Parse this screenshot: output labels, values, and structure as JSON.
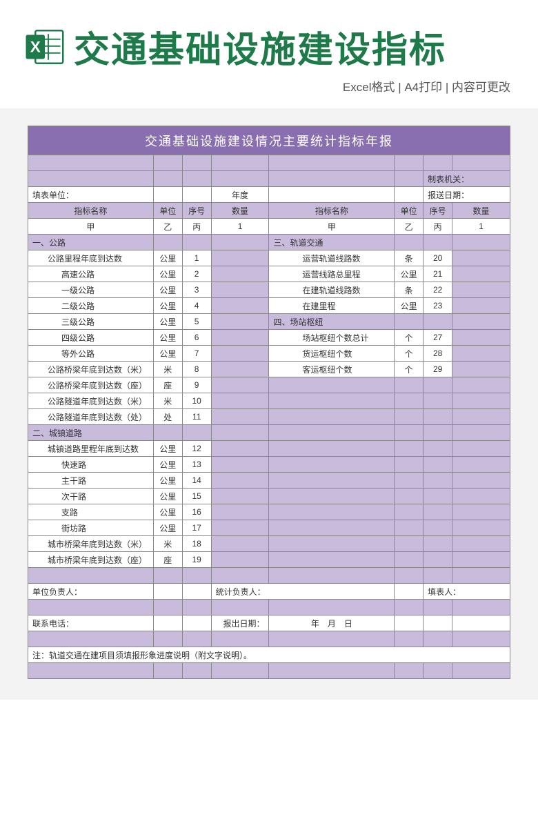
{
  "banner": {
    "title": "交通基础设施建设指标",
    "subtitle": "Excel格式 | A4打印 | 内容可更改"
  },
  "colors": {
    "title_bg": "#8a6fb0",
    "header_bg": "#c8bbdc",
    "cell_bg": "#ffffff",
    "border": "#888888",
    "brand_green": "#1f7a4a"
  },
  "table": {
    "title": "交通基础设施建设情况主要统计指标年报",
    "meta": {
      "org_label": "制表机关：",
      "fill_unit_label": "填表单位：",
      "year_label": "年度",
      "report_date_label": "报送日期："
    },
    "header": {
      "name": "指标名称",
      "unit": "单位",
      "seq": "序号",
      "qty": "数量"
    },
    "subheader": {
      "a": "甲",
      "b": "乙",
      "c": "丙",
      "d": "1"
    },
    "left_rows": [
      {
        "name": "一、公路",
        "unit": "",
        "seq": "",
        "white": false,
        "indent": 1
      },
      {
        "name": "公路里程年底到达数",
        "unit": "公里",
        "seq": "1",
        "white": true,
        "indent": 2
      },
      {
        "name": "高速公路",
        "unit": "公里",
        "seq": "2",
        "white": true,
        "indent": 3
      },
      {
        "name": "一级公路",
        "unit": "公里",
        "seq": "3",
        "white": true,
        "indent": 3
      },
      {
        "name": "二级公路",
        "unit": "公里",
        "seq": "4",
        "white": true,
        "indent": 3
      },
      {
        "name": "三级公路",
        "unit": "公里",
        "seq": "5",
        "white": true,
        "indent": 3
      },
      {
        "name": "四级公路",
        "unit": "公里",
        "seq": "6",
        "white": true,
        "indent": 3
      },
      {
        "name": "等外公路",
        "unit": "公里",
        "seq": "7",
        "white": true,
        "indent": 3
      },
      {
        "name": "公路桥梁年底到达数（米）",
        "unit": "米",
        "seq": "8",
        "white": true,
        "indent": 2
      },
      {
        "name": "公路桥梁年底到达数（座）",
        "unit": "座",
        "seq": "9",
        "white": true,
        "indent": 2
      },
      {
        "name": "公路隧道年底到达数（米）",
        "unit": "米",
        "seq": "10",
        "white": true,
        "indent": 2
      },
      {
        "name": "公路隧道年底到达数（处）",
        "unit": "处",
        "seq": "11",
        "white": true,
        "indent": 2
      },
      {
        "name": "二、城镇道路",
        "unit": "",
        "seq": "",
        "white": false,
        "indent": 1
      },
      {
        "name": "城镇道路里程年底到达数",
        "unit": "公里",
        "seq": "12",
        "white": true,
        "indent": 2
      },
      {
        "name": "快速路",
        "unit": "公里",
        "seq": "13",
        "white": true,
        "indent": 3
      },
      {
        "name": "主干路",
        "unit": "公里",
        "seq": "14",
        "white": true,
        "indent": 3
      },
      {
        "name": "次干路",
        "unit": "公里",
        "seq": "15",
        "white": true,
        "indent": 3
      },
      {
        "name": "支路",
        "unit": "公里",
        "seq": "16",
        "white": true,
        "indent": 3
      },
      {
        "name": "街坊路",
        "unit": "公里",
        "seq": "17",
        "white": true,
        "indent": 3
      },
      {
        "name": "城市桥梁年底到达数（米）",
        "unit": "米",
        "seq": "18",
        "white": true,
        "indent": 2
      },
      {
        "name": "城市桥梁年底到达数（座）",
        "unit": "座",
        "seq": "19",
        "white": true,
        "indent": 2
      }
    ],
    "right_rows": [
      {
        "name": "三、轨道交通",
        "unit": "",
        "seq": "",
        "white": false,
        "indent": 1
      },
      {
        "name": "运营轨道线路数",
        "unit": "条",
        "seq": "20",
        "white": true,
        "indent": 3
      },
      {
        "name": "运营线路总里程",
        "unit": "公里",
        "seq": "21",
        "white": true,
        "indent": 3
      },
      {
        "name": "在建轨道线路数",
        "unit": "条",
        "seq": "22",
        "white": true,
        "indent": 3
      },
      {
        "name": "在建里程",
        "unit": "公里",
        "seq": "23",
        "white": true,
        "indent": 3
      },
      {
        "name": "四、场站枢纽",
        "unit": "",
        "seq": "",
        "white": false,
        "indent": 1
      },
      {
        "name": "场站枢纽个数总计",
        "unit": "个",
        "seq": "27",
        "white": true,
        "indent": 3
      },
      {
        "name": "货运枢纽个数",
        "unit": "个",
        "seq": "28",
        "white": true,
        "indent": 3
      },
      {
        "name": "客运枢纽个数",
        "unit": "个",
        "seq": "29",
        "white": true,
        "indent": 3
      },
      {
        "name": "",
        "unit": "",
        "seq": "",
        "white": false
      },
      {
        "name": "",
        "unit": "",
        "seq": "",
        "white": false
      },
      {
        "name": "",
        "unit": "",
        "seq": "",
        "white": false
      },
      {
        "name": "",
        "unit": "",
        "seq": "",
        "white": false
      },
      {
        "name": "",
        "unit": "",
        "seq": "",
        "white": false
      },
      {
        "name": "",
        "unit": "",
        "seq": "",
        "white": false
      },
      {
        "name": "",
        "unit": "",
        "seq": "",
        "white": false
      },
      {
        "name": "",
        "unit": "",
        "seq": "",
        "white": false
      },
      {
        "name": "",
        "unit": "",
        "seq": "",
        "white": false
      },
      {
        "name": "",
        "unit": "",
        "seq": "",
        "white": false
      },
      {
        "name": "",
        "unit": "",
        "seq": "",
        "white": false
      },
      {
        "name": "",
        "unit": "",
        "seq": "",
        "white": false
      }
    ],
    "footer": {
      "head_label": "单位负责人：",
      "stat_label": "统计负责人：",
      "filler_label": "填表人：",
      "phone_label": "联系电话：",
      "out_date_label": "报出日期：",
      "date_text": "年　月　日",
      "note": "注：轨道交通在建项目须填报形象进度说明（附文字说明）。"
    }
  }
}
